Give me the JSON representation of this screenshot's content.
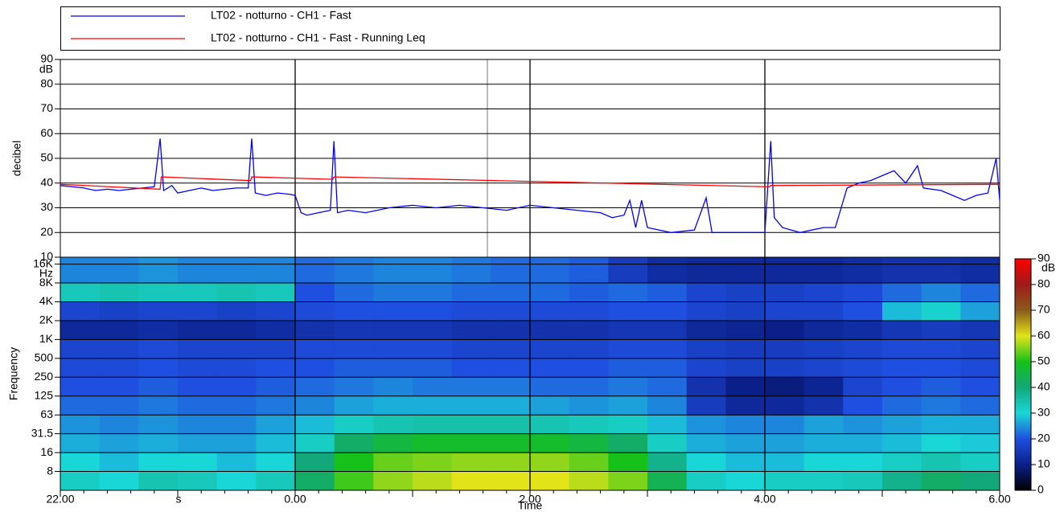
{
  "chart_data": [
    {
      "type": "line",
      "y_label": "decibel",
      "y_unit": "dB",
      "xlim": [
        0,
        8
      ],
      "ylim": [
        10,
        90
      ],
      "yticks": [
        10,
        20,
        30,
        40,
        50,
        60,
        70,
        80,
        90
      ],
      "grid": true,
      "series": [
        {
          "name": "LT02 - notturno - CH1 - Fast",
          "color": "#0000ff",
          "x": [
            0,
            0.1,
            0.2,
            0.3,
            0.4,
            0.5,
            0.6,
            0.7,
            0.8,
            0.85,
            0.88,
            0.95,
            1.0,
            1.1,
            1.2,
            1.3,
            1.4,
            1.5,
            1.6,
            1.63,
            1.66,
            1.75,
            1.85,
            1.95,
            2.0,
            2.05,
            2.1,
            2.2,
            2.3,
            2.33,
            2.36,
            2.45,
            2.6,
            2.8,
            3.0,
            3.2,
            3.4,
            3.6,
            3.8,
            4.0,
            4.2,
            4.4,
            4.6,
            4.7,
            4.8,
            4.85,
            4.9,
            4.95,
            5.0,
            5.2,
            5.4,
            5.5,
            5.55,
            5.7,
            5.9,
            6.0,
            6.05,
            6.08,
            6.15,
            6.3,
            6.5,
            6.6,
            6.65,
            6.7,
            6.8,
            6.9,
            7.0,
            7.1,
            7.2,
            7.3,
            7.35,
            7.5,
            7.6,
            7.7,
            7.8,
            7.9,
            7.97,
            8.0
          ],
          "values": [
            39,
            38.5,
            38,
            37,
            37.5,
            37,
            37.5,
            38,
            38.5,
            58,
            37,
            39,
            36,
            37,
            38,
            37,
            37.5,
            38,
            38,
            58,
            36,
            35,
            36,
            35.5,
            35,
            28,
            27,
            28,
            29,
            57,
            28,
            29,
            28,
            30,
            31,
            30,
            31,
            30,
            29,
            31,
            30,
            29,
            28,
            26,
            27,
            33,
            22,
            33,
            22,
            20,
            21,
            34,
            20,
            20,
            20,
            20,
            57,
            26,
            22,
            20,
            22,
            22,
            30,
            38,
            40,
            41,
            43,
            45,
            40,
            47,
            38,
            37,
            35,
            33,
            35,
            36,
            50,
            33
          ]
        },
        {
          "name": "LT02 - notturno - CH1 - Fast - Running Leq",
          "color": "#ff0000",
          "x": [
            0,
            0.85,
            0.86,
            1.62,
            1.63,
            2.32,
            2.33,
            6.04,
            6.05,
            8.0
          ],
          "values": [
            39.5,
            37.5,
            42.5,
            41,
            42.5,
            41.5,
            42.5,
            38.5,
            39,
            39.5
          ]
        }
      ]
    },
    {
      "type": "heatmap",
      "x_label": "Time",
      "x_unit": "s",
      "y_label": "Frequency",
      "y_unit": "Hz",
      "xlim": [
        0,
        8
      ],
      "xticks": [
        {
          "value": 0,
          "label": "22.00"
        },
        {
          "value": 2,
          "label": "0.00"
        },
        {
          "value": 4,
          "label": "2.00"
        },
        {
          "value": 6,
          "label": "4.00"
        },
        {
          "value": 8,
          "label": "6.00"
        }
      ],
      "y_categories": [
        "8",
        "16",
        "31.5",
        "63",
        "125",
        "250",
        "500",
        "1K",
        "2K",
        "4K",
        "8K",
        "16K"
      ],
      "z_unit": "dB",
      "zlim": [
        0,
        90
      ],
      "zticks": [
        0,
        10,
        20,
        30,
        40,
        50,
        60,
        70,
        80,
        90
      ],
      "colorscale": [
        "#000000",
        "#0b1f8a",
        "#1f4fe0",
        "#1ad7d7",
        "#12a87a",
        "#16c21a",
        "#e3e31a",
        "#8a5a1a",
        "#a01a1a",
        "#ff0000"
      ],
      "z": [
        [
          32,
          30,
          34,
          33,
          30,
          33,
          42,
          52,
          56,
          58,
          60,
          60,
          60,
          58,
          55,
          44,
          32,
          30,
          32,
          32,
          33,
          38,
          42,
          40
        ],
        [
          30,
          28,
          30,
          30,
          28,
          30,
          40,
          50,
          54,
          55,
          56,
          56,
          56,
          54,
          50,
          38,
          30,
          28,
          28,
          30,
          30,
          32,
          34,
          32
        ],
        [
          27,
          26,
          27,
          26,
          26,
          28,
          32,
          42,
          46,
          48,
          48,
          48,
          48,
          46,
          42,
          32,
          27,
          26,
          26,
          27,
          27,
          28,
          30,
          29
        ],
        [
          25,
          24,
          25,
          24,
          24,
          26,
          28,
          32,
          34,
          35,
          35,
          35,
          34,
          33,
          32,
          28,
          25,
          24,
          24,
          26,
          25,
          26,
          27,
          27
        ],
        [
          22,
          22,
          23,
          22,
          22,
          23,
          24,
          26,
          27,
          27,
          27,
          27,
          26,
          25,
          26,
          24,
          16,
          12,
          12,
          14,
          20,
          22,
          23,
          22
        ],
        [
          20,
          20,
          21,
          20,
          20,
          21,
          22,
          23,
          24,
          23,
          23,
          23,
          22,
          22,
          23,
          22,
          14,
          10,
          9,
          11,
          18,
          20,
          21,
          20
        ],
        [
          19,
          19,
          20,
          19,
          19,
          20,
          20,
          21,
          21,
          21,
          20,
          20,
          20,
          20,
          21,
          21,
          18,
          17,
          17,
          18,
          19,
          20,
          20,
          19
        ],
        [
          18,
          18,
          19,
          18,
          18,
          18,
          19,
          19,
          19,
          19,
          18,
          18,
          18,
          18,
          19,
          19,
          17,
          16,
          16,
          17,
          18,
          19,
          19,
          18
        ],
        [
          12,
          12,
          13,
          12,
          12,
          13,
          14,
          15,
          15,
          15,
          14,
          14,
          14,
          14,
          15,
          15,
          12,
          11,
          10,
          12,
          13,
          15,
          16,
          15
        ],
        [
          18,
          17,
          18,
          18,
          17,
          18,
          19,
          20,
          20,
          20,
          19,
          19,
          19,
          19,
          20,
          20,
          18,
          17,
          18,
          18,
          20,
          28,
          31,
          26
        ],
        [
          33,
          34,
          33,
          33,
          34,
          33,
          20,
          22,
          23,
          23,
          22,
          22,
          22,
          21,
          22,
          21,
          18,
          17,
          17,
          18,
          19,
          22,
          24,
          22
        ],
        [
          24,
          24,
          25,
          24,
          24,
          24,
          22,
          23,
          24,
          24,
          23,
          22,
          22,
          21,
          16,
          13,
          12,
          12,
          12,
          12,
          13,
          14,
          14,
          13
        ]
      ]
    }
  ]
}
